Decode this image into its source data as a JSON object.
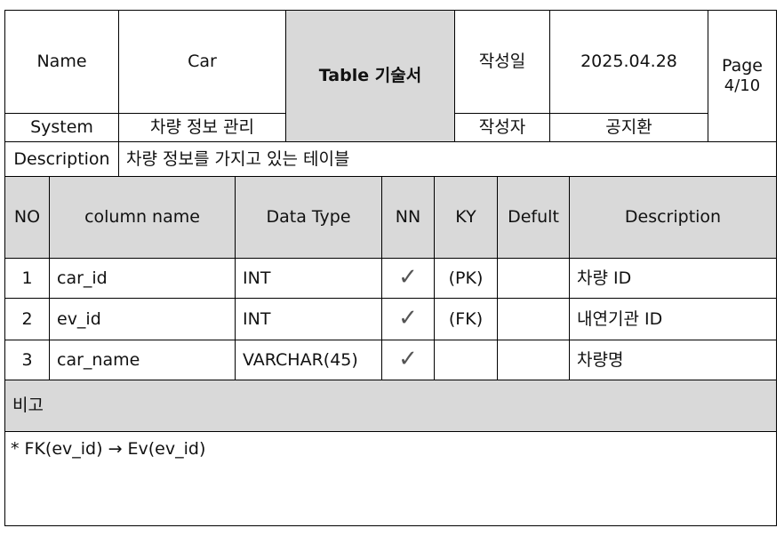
{
  "header": {
    "name_label": "Name",
    "name_value": "Car",
    "system_label": "System",
    "system_value": "차량 정보 관리",
    "doc_title": "Table 기술서",
    "created_date_label": "작성일",
    "created_date_value": "2025.04.28",
    "author_label": "작성자",
    "author_value": "공지환",
    "page_label": "Page",
    "page_value": "4/10",
    "description_label": "Description",
    "description_value": "차량 정보를 가지고 있는 테이블"
  },
  "columns": {
    "no": "NO",
    "column_name": "column name",
    "data_type": "Data Type",
    "nn": "NN",
    "ky": "KY",
    "default": "Defult",
    "description": "Description"
  },
  "rows": [
    {
      "no": "1",
      "column_name": "car_id",
      "data_type": "INT",
      "nn": "✓",
      "ky": "(PK)",
      "default": "",
      "description": "차량 ID"
    },
    {
      "no": "2",
      "column_name": "ev_id",
      "data_type": "INT",
      "nn": "✓",
      "ky": "(FK)",
      "default": "",
      "description": "내연기관 ID"
    },
    {
      "no": "3",
      "column_name": "car_name",
      "data_type": "VARCHAR(45)",
      "nn": "✓",
      "ky": "",
      "default": "",
      "description": "차량명"
    }
  ],
  "remarks": {
    "label": "비고",
    "text": "* FK(ev_id) → Ev(ev_id)"
  }
}
